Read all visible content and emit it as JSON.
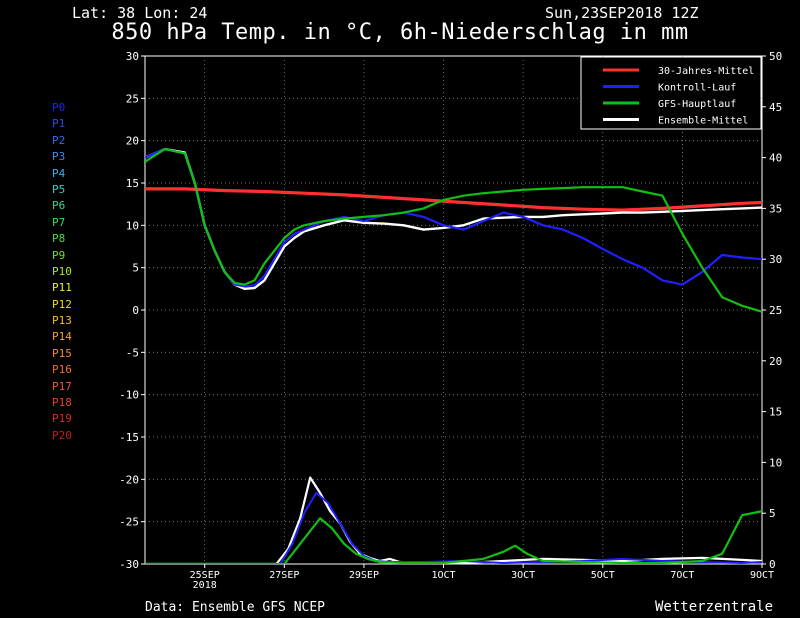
{
  "header": {
    "location": "Lat: 38 Lon: 24",
    "run": "Sun,23SEP2018 12Z",
    "title": "850 hPa Temp. in °C, 6h-Niederschlag in mm"
  },
  "footer": {
    "source": "Data: Ensemble GFS NCEP",
    "brand": "Wetterzentrale"
  },
  "members": [
    {
      "label": "P0",
      "color": "#2222ee"
    },
    {
      "label": "P1",
      "color": "#2a4cf0"
    },
    {
      "label": "P2",
      "color": "#2f6cf0"
    },
    {
      "label": "P3",
      "color": "#3a8ef0"
    },
    {
      "label": "P4",
      "color": "#35b4e8"
    },
    {
      "label": "P5",
      "color": "#30d0c0"
    },
    {
      "label": "P6",
      "color": "#30d890"
    },
    {
      "label": "P7",
      "color": "#30e050"
    },
    {
      "label": "P8",
      "color": "#40e030"
    },
    {
      "label": "P9",
      "color": "#70e020"
    },
    {
      "label": "P10",
      "color": "#a8e820"
    },
    {
      "label": "P11",
      "color": "#e8f020"
    },
    {
      "label": "P12",
      "color": "#f0d820"
    },
    {
      "label": "P13",
      "color": "#f0c020"
    },
    {
      "label": "P14",
      "color": "#f0a428"
    },
    {
      "label": "P15",
      "color": "#f08a28"
    },
    {
      "label": "P16",
      "color": "#ec7030"
    },
    {
      "label": "P17",
      "color": "#e85a30"
    },
    {
      "label": "P18",
      "color": "#e04428"
    },
    {
      "label": "P19",
      "color": "#d03020"
    },
    {
      "label": "P20",
      "color": "#c02018"
    }
  ],
  "chart_data": {
    "type": "line",
    "title": "850 hPa Temp. in °C, 6h-Niederschlag in mm",
    "x_ticks": [
      {
        "label": "25SEP",
        "sub": "2018",
        "day": 1.5
      },
      {
        "label": "27SEP",
        "day": 3.5
      },
      {
        "label": "29SEP",
        "day": 5.5
      },
      {
        "label": "1OCT",
        "day": 7.5
      },
      {
        "label": "3OCT",
        "day": 9.5
      },
      {
        "label": "5OCT",
        "day": 11.5
      },
      {
        "label": "7OCT",
        "day": 13.5
      },
      {
        "label": "9OCT",
        "day": 15.5
      }
    ],
    "xlim_days": [
      0,
      15.5
    ],
    "temp_axis": {
      "side": "left",
      "unit": "°C",
      "ylim": [
        -30,
        30
      ],
      "ticks": [
        30,
        25,
        20,
        15,
        10,
        5,
        0,
        -5,
        -10,
        -15,
        -20,
        -25,
        -30
      ]
    },
    "precip_axis": {
      "side": "right",
      "unit": "mm",
      "ylim": [
        0,
        50
      ],
      "ticks": [
        50,
        45,
        40,
        35,
        30,
        25,
        20,
        15,
        10,
        5,
        0
      ]
    },
    "grid": true,
    "legend": {
      "position": "top-right",
      "entries": [
        {
          "name": "30-Jahres-Mittel",
          "color": "#ff3030"
        },
        {
          "name": "Kontroll-Lauf",
          "color": "#2020ff"
        },
        {
          "name": "GFS-Hauptlauf",
          "color": "#10c010"
        },
        {
          "name": "Ensemble-Mittel",
          "color": "#ffffff"
        }
      ]
    },
    "series": [
      {
        "name": "30-Jahres-Mittel",
        "axis": "temp",
        "color": "#ff3030",
        "width": 3.2,
        "x": [
          0,
          1,
          2,
          3,
          4,
          5,
          6,
          7,
          8,
          9,
          10,
          11,
          12,
          13,
          14,
          15,
          15.5
        ],
        "y": [
          14.3,
          14.3,
          14.1,
          14.0,
          13.8,
          13.6,
          13.3,
          13.0,
          12.7,
          12.4,
          12.1,
          11.9,
          11.8,
          12.0,
          12.3,
          12.6,
          12.7
        ]
      },
      {
        "name": "Ensemble-Mittel",
        "axis": "temp",
        "color": "#ffffff",
        "width": 2.4,
        "x": [
          0,
          0.25,
          0.5,
          0.75,
          1,
          1.25,
          1.5,
          1.75,
          2,
          2.25,
          2.5,
          2.75,
          3,
          3.25,
          3.5,
          3.75,
          4,
          4.5,
          5,
          5.5,
          6,
          6.5,
          7,
          7.5,
          8,
          8.5,
          9,
          9.5,
          10,
          10.5,
          11,
          11.5,
          12,
          12.5,
          13,
          13.5,
          14,
          14.5,
          15,
          15.5
        ],
        "y": [
          18,
          18.5,
          19,
          18.8,
          18.6,
          15,
          10,
          7,
          4.5,
          3,
          2.5,
          2.6,
          3.5,
          5.5,
          7.5,
          8.5,
          9.3,
          10.0,
          10.6,
          10.3,
          10.2,
          10.0,
          9.5,
          9.7,
          10.0,
          10.8,
          10.9,
          11.0,
          11.0,
          11.2,
          11.3,
          11.4,
          11.5,
          11.5,
          11.6,
          11.7,
          11.8,
          11.9,
          12.0,
          12.1
        ]
      },
      {
        "name": "Kontroll-Lauf",
        "axis": "temp",
        "color": "#2020ff",
        "width": 2.2,
        "x": [
          0,
          0.5,
          1,
          1.25,
          1.5,
          1.75,
          2,
          2.25,
          2.5,
          2.75,
          3,
          3.25,
          3.5,
          3.75,
          4,
          4.5,
          5,
          5.5,
          6,
          6.5,
          7,
          7.5,
          8,
          8.5,
          9,
          9.5,
          10,
          10.5,
          11,
          11.5,
          12,
          12.5,
          13,
          13.5,
          14,
          14.5,
          15,
          15.5
        ],
        "y": [
          18,
          19,
          18.5,
          15,
          10,
          7,
          4.5,
          3,
          2.8,
          2.9,
          4,
          6,
          8,
          9,
          9.5,
          10.5,
          11,
          10.5,
          11.2,
          11.5,
          11,
          10,
          9.5,
          10.5,
          11.5,
          11,
          10,
          9.5,
          8.5,
          7.2,
          6.0,
          5.0,
          3.5,
          3.0,
          4.5,
          6.5,
          6.2,
          6.0
        ]
      },
      {
        "name": "GFS-Hauptlauf",
        "axis": "temp",
        "color": "#10c010",
        "width": 2.2,
        "x": [
          0,
          0.5,
          1,
          1.25,
          1.5,
          1.75,
          2,
          2.25,
          2.5,
          2.75,
          3,
          3.25,
          3.5,
          3.75,
          4,
          4.5,
          5,
          5.5,
          6,
          6.5,
          7,
          7.5,
          8,
          8.5,
          9,
          9.5,
          10,
          10.5,
          11,
          11.5,
          12,
          12.5,
          13,
          13.5,
          14,
          14.5,
          15,
          15.5
        ],
        "y": [
          17.5,
          19,
          18.5,
          15,
          10,
          7,
          4.5,
          3.2,
          3,
          3.5,
          5.5,
          7,
          8.5,
          9.5,
          10,
          10.5,
          10.8,
          11,
          11.2,
          11.5,
          12,
          13,
          13.5,
          13.8,
          14,
          14.2,
          14.3,
          14.4,
          14.5,
          14.5,
          14.5,
          14.0,
          13.5,
          9,
          5.0,
          1.5,
          0.5,
          -0.2
        ]
      },
      {
        "name": "Ensemble-Mittel Niederschlag",
        "axis": "precip",
        "color": "#ffffff",
        "width": 2.2,
        "x": [
          0,
          3.3,
          3.6,
          3.9,
          4.15,
          4.4,
          4.65,
          4.9,
          5.15,
          5.4,
          5.65,
          5.9,
          6.15,
          6.4,
          7,
          8,
          9,
          10,
          11,
          12,
          13,
          14,
          15,
          15.5
        ],
        "y": [
          0,
          0,
          1.5,
          4.5,
          8.5,
          7,
          5.2,
          4,
          2.2,
          1.0,
          0.6,
          0.3,
          0.5,
          0.2,
          0.1,
          0.1,
          0.3,
          0.5,
          0.4,
          0.3,
          0.5,
          0.6,
          0.4,
          0.3
        ]
      },
      {
        "name": "Kontroll-Lauf Niederschlag",
        "axis": "precip",
        "color": "#2020ff",
        "width": 2.0,
        "x": [
          0,
          3.4,
          3.7,
          4.0,
          4.3,
          4.6,
          4.9,
          5.2,
          5.5,
          5.8,
          6.1,
          7,
          8,
          9,
          10,
          11,
          12,
          13,
          14,
          15,
          15.5
        ],
        "y": [
          0,
          0,
          2,
          5,
          7,
          6,
          4,
          2,
          0.8,
          0.3,
          0.2,
          0.2,
          0.3,
          0.1,
          0.2,
          0.3,
          0.5,
          0.3,
          0.2,
          0.1,
          0.2
        ]
      },
      {
        "name": "GFS-Hauptlauf Niederschlag",
        "axis": "precip",
        "color": "#10c010",
        "width": 2.2,
        "x": [
          0,
          3.5,
          3.8,
          4.1,
          4.4,
          4.7,
          5.0,
          5.3,
          5.6,
          5.9,
          6.5,
          7.5,
          8.5,
          9,
          9.3,
          9.6,
          10,
          11,
          12,
          13,
          14,
          14.5,
          15,
          15.5
        ],
        "y": [
          0,
          0,
          1.5,
          3,
          4.5,
          3.5,
          2.0,
          1.0,
          0.5,
          0.2,
          0.1,
          0.1,
          0.5,
          1.2,
          1.8,
          1.0,
          0.3,
          0.2,
          0.1,
          0.1,
          0.3,
          1.0,
          4.8,
          5.2
        ]
      }
    ]
  }
}
